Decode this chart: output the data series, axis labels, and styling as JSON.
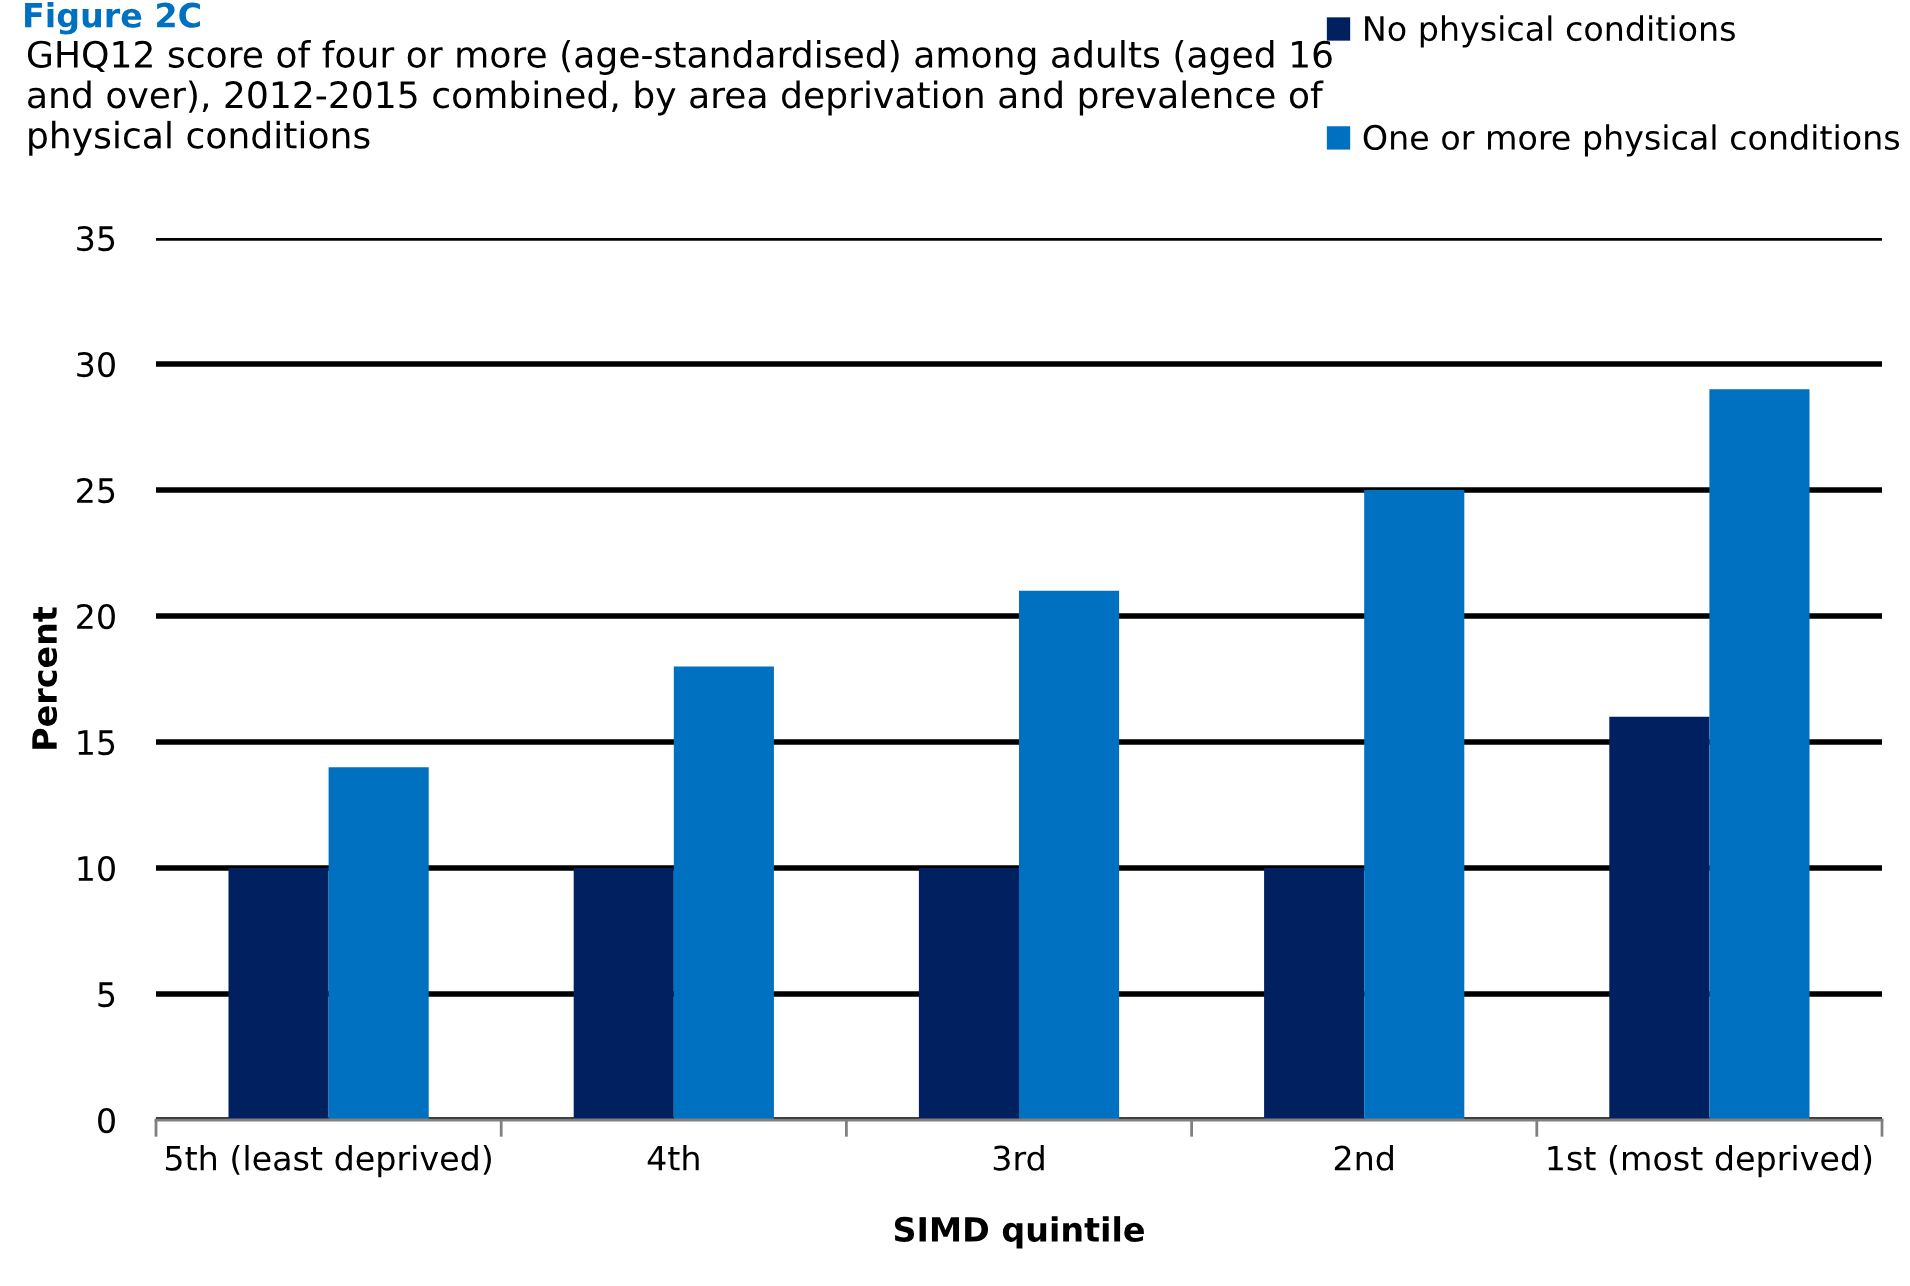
{
  "chart_data": {
    "type": "bar",
    "title": "Figure 2C",
    "subtitle": "GHQ12 score of four or more (age-standardised) among adults (aged 16 and over), 2012-2015 combined, by area deprivation and prevalence of physical conditions",
    "xlabel": "SIMD quintile",
    "ylabel": "Percent",
    "categories": [
      "5th (least deprived)",
      "4th",
      "3rd",
      "2nd",
      "1st (most deprived)"
    ],
    "series": [
      {
        "name": "No physical conditions",
        "color": "#002060",
        "values": [
          10,
          10,
          10,
          10,
          16
        ]
      },
      {
        "name": "One or more physical conditions",
        "color": "#0070c0",
        "values": [
          14,
          18,
          21,
          25,
          29
        ]
      }
    ],
    "ylim": [
      0,
      35
    ],
    "yticks": [
      0,
      5,
      10,
      15,
      20,
      25,
      30,
      35
    ],
    "grid": "y",
    "legend": "top right"
  }
}
